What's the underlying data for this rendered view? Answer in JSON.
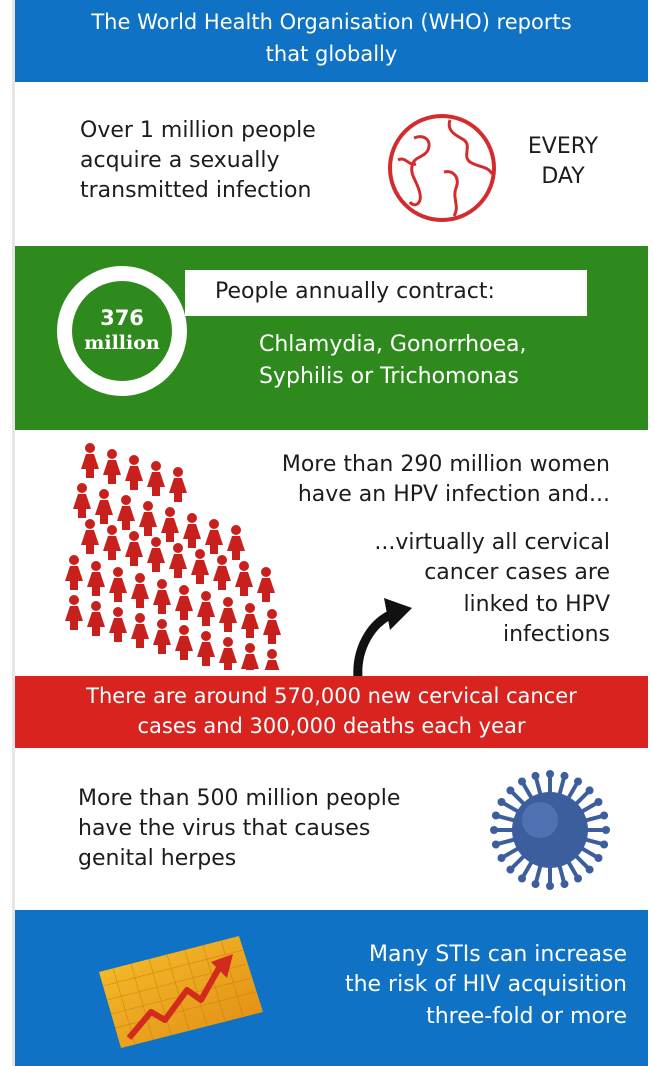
{
  "header": {
    "text_line1": "The World Health Organisation (WHO) reports",
    "text_line2": "that globally"
  },
  "section1": {
    "line1": "Over 1 million people",
    "line2": "acquire a sexually",
    "line3": "transmitted infection",
    "badge_line1": "EVERY",
    "badge_line2": "DAY",
    "icon": "globe-icon"
  },
  "section2": {
    "circle_number": "376",
    "circle_unit": "million",
    "label": "People annually contract:",
    "diseases_line1": "Chlamydia, Gonorrhoea,",
    "diseases_line2": "Syphilis or Trichomonas"
  },
  "section3": {
    "line1": "More than 290 million women",
    "line2": "have an HPV infection and...",
    "line3": "...virtually all cervical",
    "line4": "cancer cases are",
    "line5": "linked to HPV",
    "line6": "infections",
    "icon": "women-group-icon",
    "arrow_icon": "curved-arrow-icon"
  },
  "section4": {
    "line1": "There are around 570,000 new cervical cancer",
    "line2": "cases and 300,000 deaths each year"
  },
  "section5": {
    "line1": "More than 500 million people",
    "line2": "have the virus that causes",
    "line3": "genital herpes",
    "icon": "virus-icon"
  },
  "section6": {
    "line1": "Many STIs can increase",
    "line2": "the risk of HIV acquisition",
    "line3": "three-fold or more",
    "icon": "rising-chart-icon"
  },
  "colors": {
    "blue": "#0f72c4",
    "green": "#2f8a1e",
    "red": "#d8231f",
    "figure": "#c8201c",
    "virus": "#3d5e9c"
  }
}
